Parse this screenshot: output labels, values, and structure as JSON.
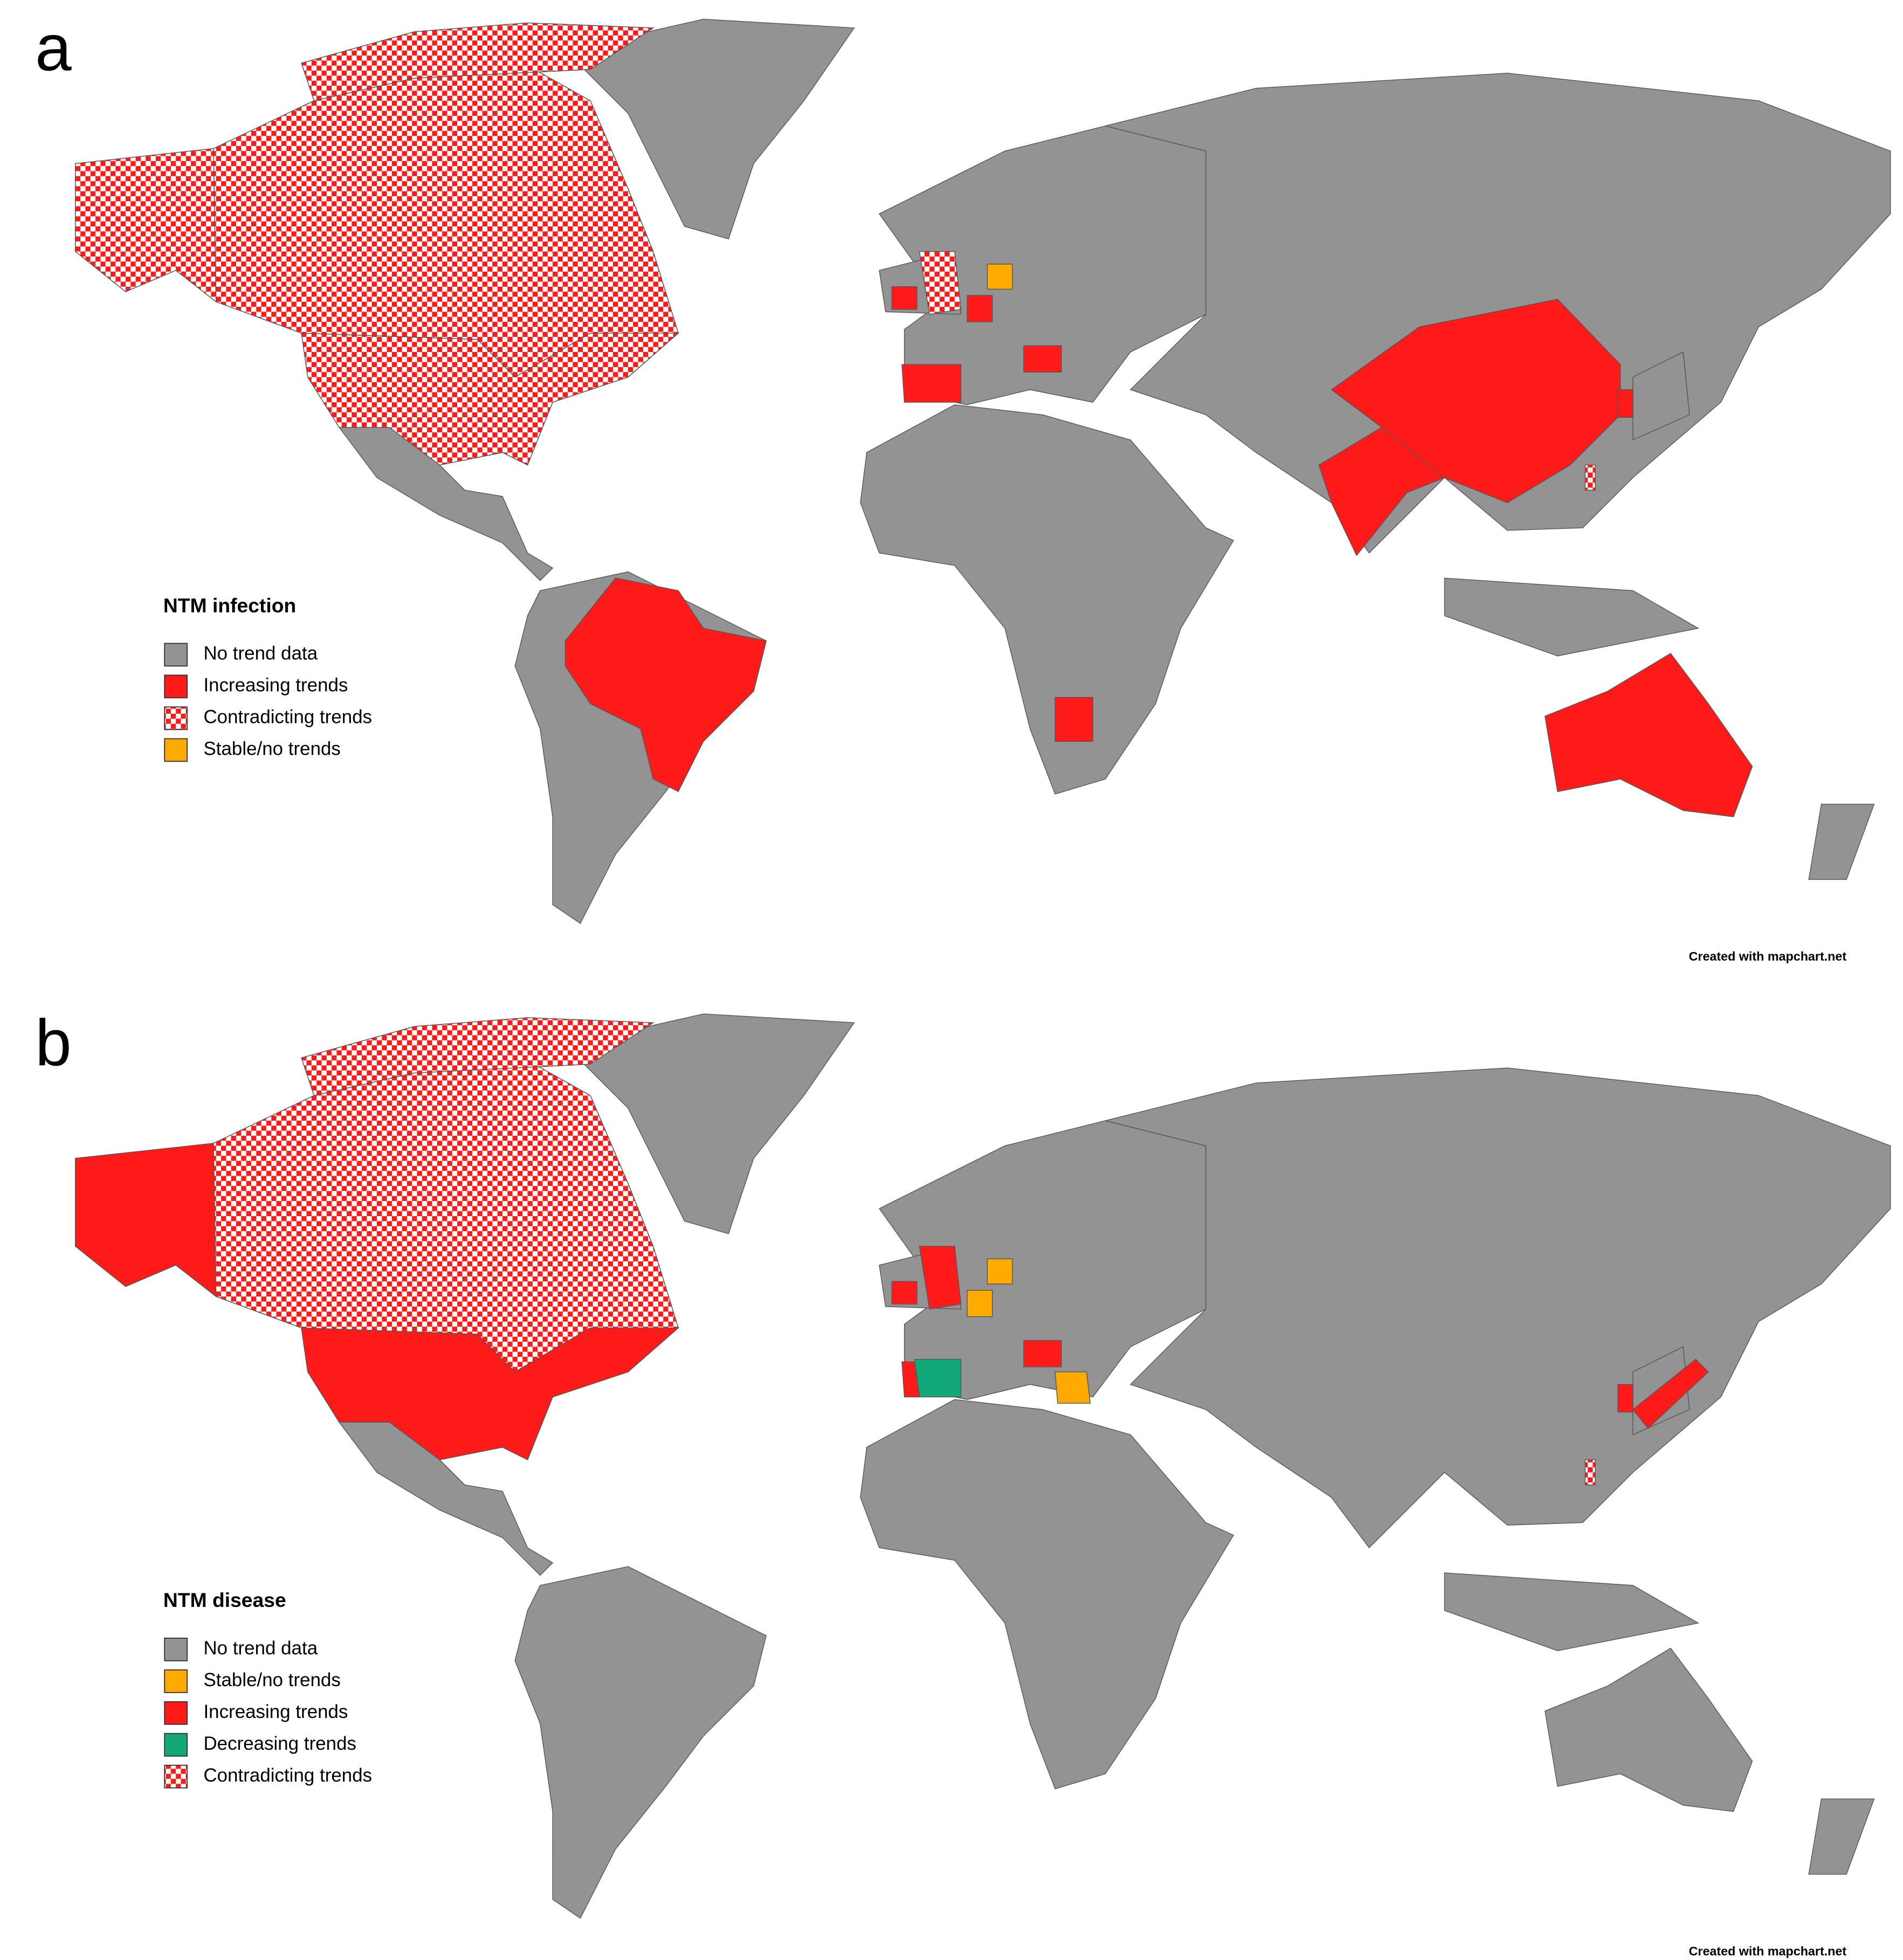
{
  "panels": [
    {
      "label": "a",
      "legend": {
        "title": "NTM infection",
        "items": [
          {
            "label": "No trend data",
            "color": "#939393"
          },
          {
            "label": "Increasing trends",
            "color": "#ff1a1a"
          },
          {
            "label": "Contradicting trends",
            "color": "#ff1a1a",
            "pattern": "checker"
          },
          {
            "label": "Stable/no trends",
            "color": "#ffaa00"
          }
        ]
      },
      "credit": "Created with mapchart.net"
    },
    {
      "label": "b",
      "legend": {
        "title": "NTM disease",
        "items": [
          {
            "label": "No trend data",
            "color": "#939393"
          },
          {
            "label": "Stable/no trends",
            "color": "#ffaa00"
          },
          {
            "label": "Increasing trends",
            "color": "#ff1a1a"
          },
          {
            "label": "Decreasing trends",
            "color": "#12a87a"
          },
          {
            "label": "Contradicting trends",
            "color": "#ff1a1a",
            "pattern": "checker"
          }
        ]
      },
      "credit": "Created with mapchart.net"
    }
  ]
}
